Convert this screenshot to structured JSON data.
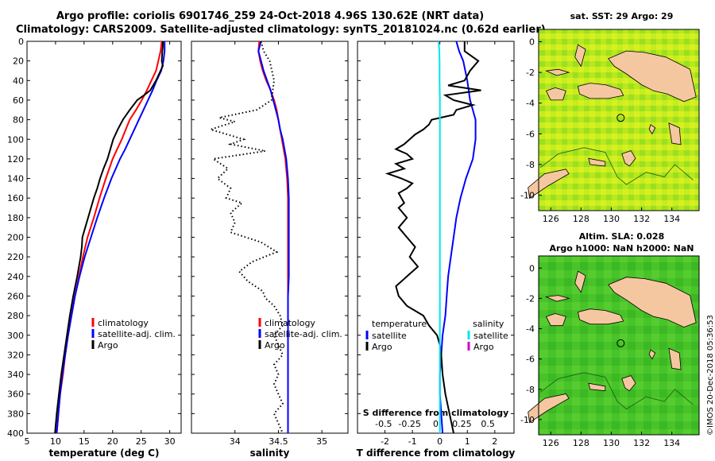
{
  "title_line1": "Argo profile: coriolis 6901746_259 24-Oct-2018 4.96S 130.62E (NRT data)",
  "title_line2": "Climatology: CARS2009. Satellite-adjusted climatology: synTS_20181024.nc (0.62d earlier)",
  "credit": "©IMOS 20-Dec-2018 05:36:53",
  "colors": {
    "climatology": "#ff0000",
    "satellite": "#0000ff",
    "argo": "#000000",
    "cyan": "#00e5ee",
    "magenta": "#d000d0",
    "land": "#f5c7a0"
  },
  "chart_data": [
    {
      "type": "line",
      "name": "temperature-panel",
      "xlabel": "temperature (deg C)",
      "ylabel": "",
      "xlim": [
        5,
        32
      ],
      "ylim": [
        400,
        0
      ],
      "xticks": [
        5,
        10,
        15,
        20,
        25,
        30
      ],
      "yticks": [
        0,
        20,
        40,
        60,
        80,
        100,
        120,
        140,
        160,
        180,
        200,
        220,
        240,
        260,
        280,
        300,
        320,
        340,
        360,
        380,
        400
      ],
      "legend": [
        {
          "label": "climatology",
          "color": "#ff0000"
        },
        {
          "label": "satellite-adj. clim.",
          "color": "#0000ff"
        },
        {
          "label": "Argo",
          "color": "#000000"
        }
      ],
      "series": [
        {
          "name": "climatology",
          "color": "#ff0000",
          "style": "solid",
          "depth": [
            0,
            10,
            20,
            30,
            40,
            50,
            60,
            70,
            80,
            90,
            100,
            110,
            120,
            140,
            160,
            180,
            200,
            220,
            240,
            260,
            280,
            300,
            320,
            340,
            360,
            380,
            400
          ],
          "value": [
            28.6,
            28.4,
            28.0,
            27.6,
            26.8,
            26.0,
            25.1,
            24.1,
            23.0,
            22.3,
            21.6,
            20.8,
            20.0,
            18.8,
            17.7,
            16.7,
            15.6,
            14.8,
            14.1,
            13.4,
            12.8,
            12.2,
            11.7,
            11.3,
            10.8,
            10.5,
            10.2
          ]
        },
        {
          "name": "satellite-adj. clim.",
          "color": "#0000ff",
          "style": "solid",
          "depth": [
            0,
            10,
            20,
            30,
            40,
            50,
            60,
            70,
            80,
            90,
            100,
            110,
            120,
            140,
            160,
            180,
            200,
            220,
            240,
            260,
            280,
            300,
            320,
            340,
            360,
            380,
            400
          ],
          "value": [
            29.1,
            29.1,
            28.9,
            28.5,
            27.7,
            27.0,
            26.2,
            25.4,
            24.6,
            23.8,
            23.0,
            22.2,
            21.3,
            19.8,
            18.5,
            17.3,
            16.2,
            15.1,
            14.2,
            13.4,
            12.8,
            12.2,
            11.7,
            11.2,
            10.8,
            10.5,
            10.2
          ]
        },
        {
          "name": "Argo",
          "color": "#000000",
          "style": "solid",
          "depth": [
            0,
            5,
            10,
            20,
            25,
            30,
            40,
            50,
            55,
            60,
            70,
            80,
            90,
            100,
            110,
            120,
            130,
            140,
            150,
            160,
            170,
            180,
            190,
            200,
            210,
            220,
            240,
            260,
            280,
            300,
            320,
            340,
            360,
            380,
            400
          ],
          "value": [
            28.8,
            28.8,
            28.7,
            28.6,
            28.8,
            28.4,
            27.6,
            26.6,
            25.5,
            24.3,
            23.0,
            21.8,
            20.9,
            20.1,
            19.6,
            19.1,
            18.4,
            17.8,
            17.3,
            16.7,
            16.2,
            15.7,
            15.2,
            14.7,
            14.6,
            14.4,
            13.8,
            13.1,
            12.5,
            12.0,
            11.5,
            11.0,
            10.6,
            10.2,
            9.9
          ]
        }
      ]
    },
    {
      "type": "line",
      "name": "salinity-panel",
      "xlabel": "salinity",
      "xlim": [
        33.5,
        35.3
      ],
      "ylim": [
        400,
        0
      ],
      "xticks": [
        34,
        34.5,
        35
      ],
      "xticklabels": [
        "34",
        "34.5",
        "35"
      ],
      "legend": [
        {
          "label": "climatology",
          "color": "#ff0000"
        },
        {
          "label": "satellite-adj. clim.",
          "color": "#0000ff"
        },
        {
          "label": "Argo",
          "color": "#000000"
        }
      ],
      "series": [
        {
          "name": "climatology",
          "color": "#ff0000",
          "style": "solid",
          "depth": [
            0,
            10,
            20,
            30,
            40,
            50,
            60,
            70,
            80,
            90,
            100,
            110,
            120,
            140,
            160,
            180,
            200,
            220,
            240,
            260,
            280,
            300,
            320,
            340,
            360,
            380,
            400
          ],
          "value": [
            34.28,
            34.27,
            34.29,
            34.32,
            34.36,
            34.41,
            34.45,
            34.48,
            34.5,
            34.52,
            34.54,
            34.56,
            34.58,
            34.6,
            34.61,
            34.61,
            34.61,
            34.61,
            34.61,
            34.61,
            34.61,
            34.61,
            34.61,
            34.61,
            34.61,
            34.61,
            34.61
          ]
        },
        {
          "name": "satellite-adj. clim.",
          "color": "#0000ff",
          "style": "solid",
          "depth": [
            0,
            10,
            20,
            30,
            40,
            50,
            60,
            70,
            80,
            90,
            100,
            110,
            120,
            140,
            160,
            180,
            200,
            220,
            240,
            260,
            280,
            300,
            320,
            340,
            360,
            380,
            400
          ],
          "value": [
            34.3,
            34.27,
            34.3,
            34.33,
            34.37,
            34.41,
            34.44,
            34.47,
            34.5,
            34.52,
            34.55,
            34.57,
            34.59,
            34.61,
            34.62,
            34.62,
            34.62,
            34.62,
            34.62,
            34.61,
            34.61,
            34.61,
            34.61,
            34.61,
            34.61,
            34.61,
            34.61
          ]
        },
        {
          "name": "Argo",
          "color": "#000000",
          "style": "dotted",
          "depth": [
            0,
            10,
            20,
            40,
            60,
            70,
            78,
            82,
            90,
            100,
            105,
            112,
            120,
            130,
            140,
            150,
            160,
            165,
            175,
            185,
            195,
            205,
            215,
            225,
            235,
            245,
            255,
            262,
            270,
            280,
            290,
            300,
            310,
            320,
            330,
            340,
            350,
            360,
            370,
            380,
            390,
            400
          ],
          "value": [
            34.3,
            34.33,
            34.4,
            34.45,
            34.42,
            34.25,
            33.82,
            34.0,
            33.72,
            34.1,
            33.95,
            34.35,
            33.75,
            33.92,
            33.8,
            33.95,
            33.9,
            34.08,
            33.95,
            34.0,
            33.95,
            34.3,
            34.48,
            34.2,
            34.05,
            34.15,
            34.32,
            34.35,
            34.45,
            34.52,
            34.55,
            34.45,
            34.5,
            34.55,
            34.45,
            34.5,
            34.45,
            34.5,
            34.55,
            34.45,
            34.5,
            34.55
          ]
        }
      ]
    },
    {
      "type": "line",
      "name": "difference-panel",
      "xlabel": "T difference from climatology",
      "xlabel_top": "S difference from climatology",
      "xlim": [
        -3,
        2.7
      ],
      "ylim": [
        400,
        0
      ],
      "xticks": [
        -2,
        -1,
        0,
        1,
        2
      ],
      "top_ticks": [
        -0.5,
        -0.25,
        0,
        0.25,
        0.5
      ],
      "top_ticklabels": [
        "-0.5",
        "-0.25",
        "0",
        "0.25",
        "0.5"
      ],
      "legend_left_title": "temperature",
      "legend_right_title": "salinity",
      "legend_left": [
        {
          "label": "satellite",
          "color": "#0000ff"
        },
        {
          "label": "Argo",
          "color": "#000000"
        }
      ],
      "legend_right": [
        {
          "label": "satellite",
          "color": "#00e5ee"
        },
        {
          "label": "Argo",
          "color": "#d000d0"
        }
      ],
      "series": [
        {
          "name": "T satellite",
          "color": "#0000ff",
          "style": "solid",
          "depth": [
            0,
            10,
            20,
            40,
            60,
            80,
            100,
            120,
            140,
            160,
            180,
            200,
            220,
            240,
            260,
            280,
            300,
            320,
            340,
            360,
            380,
            400
          ],
          "value": [
            0.6,
            0.7,
            0.85,
            1.0,
            1.1,
            1.3,
            1.3,
            1.2,
            0.95,
            0.75,
            0.6,
            0.5,
            0.4,
            0.3,
            0.25,
            0.2,
            0.1,
            0.05,
            0.0,
            0.0,
            0.05,
            0.1
          ]
        },
        {
          "name": "T Argo",
          "color": "#000000",
          "style": "solid",
          "depth": [
            0,
            10,
            20,
            30,
            40,
            45,
            50,
            55,
            60,
            65,
            70,
            75,
            80,
            85,
            90,
            95,
            100,
            105,
            110,
            115,
            120,
            125,
            130,
            135,
            140,
            145,
            150,
            155,
            160,
            165,
            170,
            180,
            190,
            200,
            210,
            220,
            230,
            240,
            250,
            260,
            270,
            280,
            290,
            300,
            310,
            320,
            340,
            360,
            380,
            400
          ],
          "value": [
            0.9,
            0.9,
            1.4,
            1.1,
            0.9,
            0.3,
            1.5,
            0.2,
            0.5,
            1.2,
            0.6,
            0.5,
            -0.3,
            -0.4,
            -0.6,
            -0.9,
            -1.1,
            -1.3,
            -1.6,
            -1.2,
            -1.0,
            -1.6,
            -1.3,
            -1.9,
            -1.4,
            -1.0,
            -1.2,
            -1.5,
            -1.4,
            -1.3,
            -1.5,
            -1.2,
            -1.5,
            -1.2,
            -0.9,
            -1.1,
            -0.8,
            -1.2,
            -1.6,
            -1.5,
            -1.2,
            -0.6,
            -0.4,
            -0.1,
            0.0,
            0.05,
            0.1,
            0.2,
            0.35,
            0.5
          ]
        },
        {
          "name": "S satellite",
          "color": "#00e5ee",
          "style": "solid",
          "depth": [
            0,
            10,
            20,
            40,
            60,
            80,
            100,
            150,
            200,
            250,
            300,
            350,
            400
          ],
          "value": [
            -0.05,
            -0.02,
            -0.01,
            -0.01,
            0,
            0,
            0,
            0,
            0,
            0,
            0,
            0,
            0
          ]
        }
      ]
    }
  ],
  "maps": [
    {
      "name": "sst-map",
      "title": "sat. SST: 29 Argo: 29",
      "lon_ticks": [
        126,
        128,
        130,
        132,
        134
      ],
      "lat_ticks": [
        0,
        -2,
        -4,
        -6,
        -8,
        -10
      ],
      "argo_lon": 130.62,
      "argo_lat": -4.96
    },
    {
      "name": "sla-map",
      "title_line1": "Altim. SLA: 0.028",
      "title_line2": "Argo h1000: NaN h2000: NaN",
      "lon_ticks": [
        126,
        128,
        130,
        132,
        134
      ],
      "lat_ticks": [
        0,
        -2,
        -4,
        -6,
        -8,
        -10
      ],
      "argo_lon": 130.62,
      "argo_lat": -4.96
    }
  ]
}
